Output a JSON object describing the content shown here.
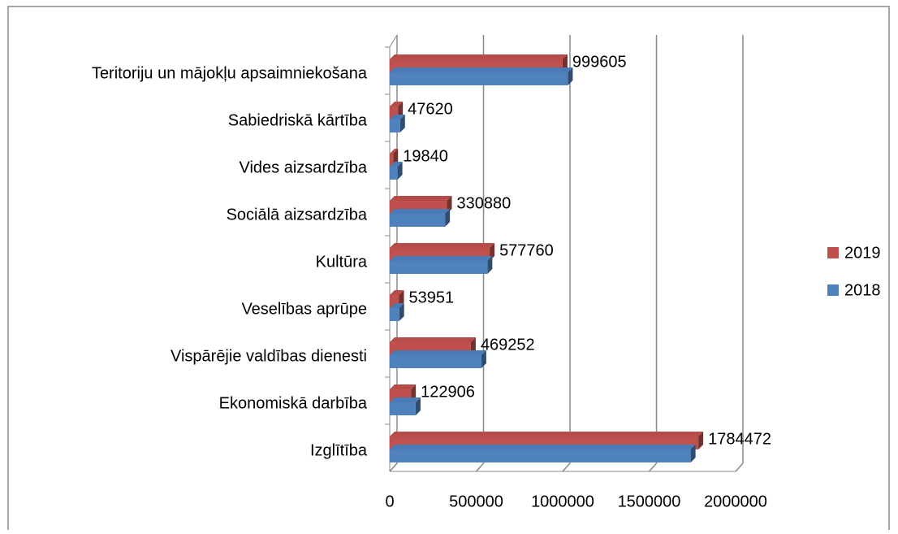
{
  "chart_data": {
    "type": "bar",
    "orientation": "horizontal",
    "three_d": true,
    "categories": [
      "Izglītība",
      "Ekonomiskā darbība",
      "Vispārējie valdības dienesti",
      "Veselības aprūpe",
      "Kultūra",
      "Sociālā aizsardzība",
      "Vides aizsardzība",
      "Sabiedriskā kārtība",
      "Teritoriju un mājokļu apsaimniekošana"
    ],
    "series": [
      {
        "name": "2019",
        "color": "#c0504d",
        "values": [
          1784472,
          122906,
          469252,
          53951,
          577760,
          330880,
          19840,
          47620,
          999605
        ],
        "data_labels": true
      },
      {
        "name": "2018",
        "color": "#4f81bd",
        "values": [
          1740000,
          150000,
          530000,
          55000,
          565000,
          320000,
          45000,
          60000,
          1030000
        ],
        "data_labels": false
      }
    ],
    "xlim": [
      0,
      2000000
    ],
    "xticks": [
      0,
      500000,
      1000000,
      1500000,
      2000000
    ],
    "grid": true,
    "legend": "right"
  }
}
